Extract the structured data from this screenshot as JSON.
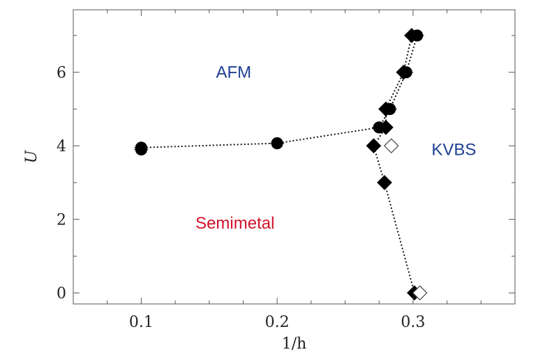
{
  "chart_data": {
    "type": "scatter",
    "xlabel": "1/h",
    "ylabel": "U",
    "xlim": [
      0.05,
      0.375
    ],
    "ylim": [
      -0.3,
      7.7
    ],
    "xticks": [
      0.1,
      0.2,
      0.3
    ],
    "xtick_labels": [
      "0.1",
      "0.2",
      "0.3"
    ],
    "yticks": [
      0,
      2,
      4,
      6
    ],
    "ytick_labels": [
      "0",
      "2",
      "4",
      "6"
    ],
    "grid": false,
    "series": [
      {
        "marker": "circle",
        "fill": "filled",
        "line": "dotted",
        "x": [
          0.1,
          0.1,
          0.2,
          0.275,
          0.283,
          0.295,
          0.303
        ],
        "y": [
          3.9,
          3.95,
          4.07,
          4.5,
          5.0,
          6.0,
          7.0
        ]
      },
      {
        "marker": "diamond",
        "fill": "filled",
        "line": "dotted",
        "x": [
          0.301,
          0.279,
          0.271,
          0.28,
          0.28,
          0.293,
          0.299
        ],
        "y": [
          0.0,
          3.0,
          4.0,
          4.5,
          5.0,
          6.0,
          7.0
        ]
      },
      {
        "marker": "diamond",
        "fill": "open",
        "line": "none",
        "x": [
          0.305,
          0.284
        ],
        "y": [
          0.0,
          4.0
        ]
      }
    ],
    "annotations": [
      {
        "text": "AFM",
        "x": 0.168,
        "y": 6.0,
        "color": "#1f3f94"
      },
      {
        "text": "KVBS",
        "x": 0.33,
        "y": 3.9,
        "color": "#1f3f94"
      },
      {
        "text": "Semimetal",
        "x": 0.169,
        "y": 1.9,
        "color": "#d1122b"
      }
    ]
  }
}
